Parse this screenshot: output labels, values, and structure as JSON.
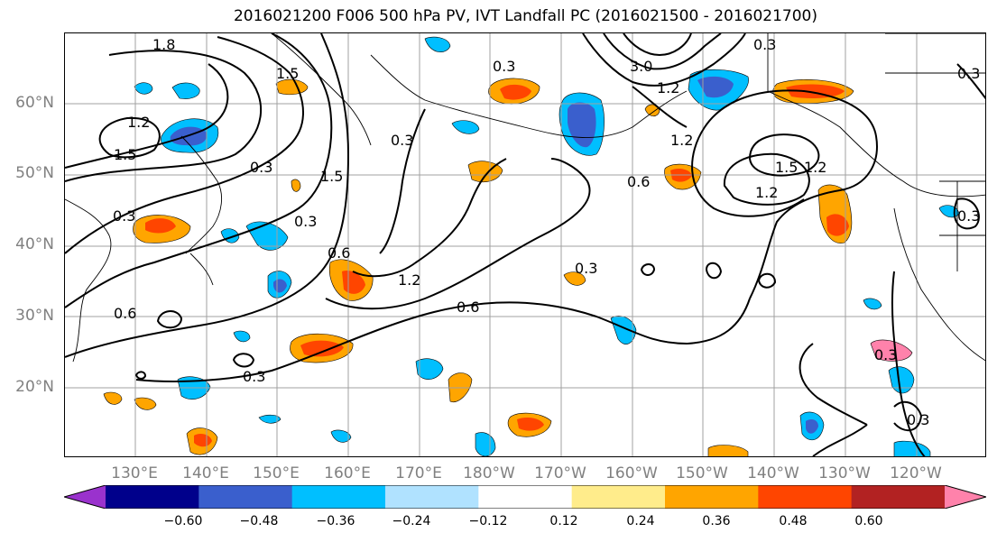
{
  "title": "2016021200 F006 500 hPa PV, IVT Landfall PC (2016021500 - 2016021700)",
  "lat_labels": [
    "60°N",
    "50°N",
    "40°N",
    "30°N",
    "20°N"
  ],
  "lon_labels": [
    "130°E",
    "140°E",
    "150°E",
    "160°E",
    "170°E",
    "180°W",
    "170°W",
    "160°W",
    "150°W",
    "140°W",
    "130°W",
    "120°W"
  ],
  "contour_labels": [
    "1.8",
    "1.5",
    "1.2",
    "1.5",
    "0.3",
    "0.3",
    "1.5",
    "0.3",
    "0.6",
    "0.3",
    "0.6",
    "1.2",
    "0.3",
    "0.6",
    "0.3",
    "0.3",
    "3.0",
    "1.2",
    "1.2",
    "0.6",
    "1.2",
    "1.5",
    "1.2",
    "0.3",
    "0.3",
    "0.3",
    "0.3",
    "0.3"
  ],
  "colorbar": {
    "colors": [
      "#9a32cd",
      "#00008b",
      "#3a5fcd",
      "#00bfff",
      "#b0e2ff",
      "#ffffff",
      "#ffec8b",
      "#ffa500",
      "#ff4500",
      "#b22222",
      "#ff82ab"
    ],
    "tick_labels": [
      "−0.60",
      "−0.48",
      "−0.36",
      "−0.24",
      "−0.12",
      "0.12",
      "0.24",
      "0.36",
      "0.48",
      "0.60"
    ]
  }
}
